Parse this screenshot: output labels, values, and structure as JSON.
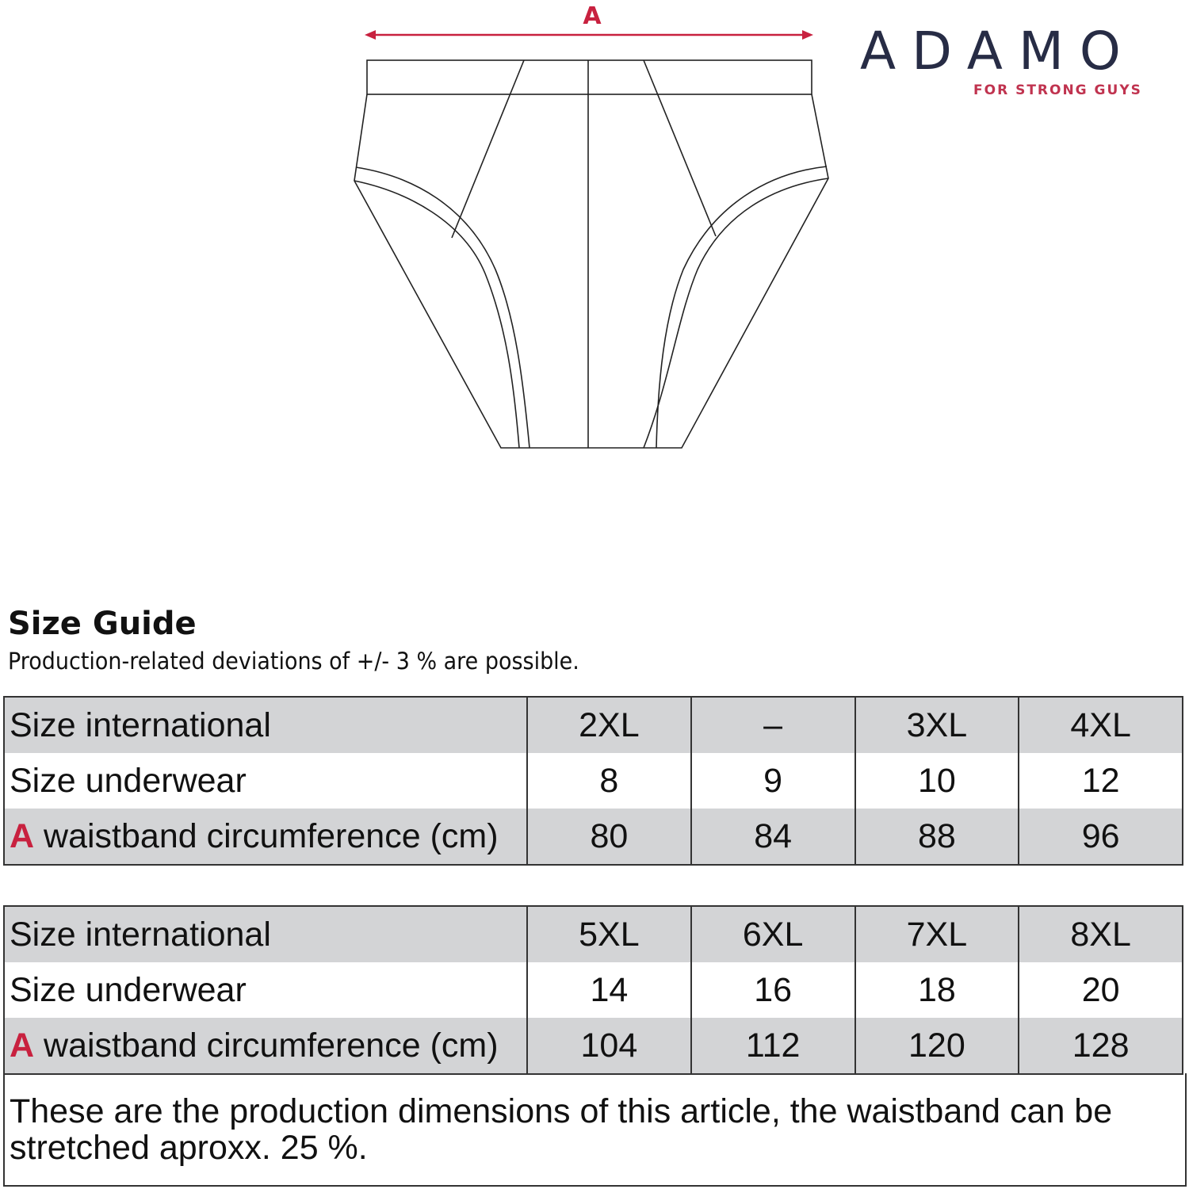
{
  "diagram": {
    "measure_label": "A",
    "accent_color": "#c8213f"
  },
  "logo": {
    "brand": "ADAMO",
    "tagline": "FOR STRONG GUYS",
    "brand_color": "#272c45",
    "tagline_color": "#c0334f"
  },
  "guide": {
    "title": "Size Guide",
    "subtitle": "Production-related deviations of +/- 3 % are possible.",
    "tables": [
      {
        "rows": [
          {
            "label": "Size international",
            "values": [
              "2XL",
              "–",
              "3XL",
              "4XL"
            ]
          },
          {
            "label": "Size underwear",
            "values": [
              "8",
              "9",
              "10",
              "12"
            ]
          },
          {
            "marker": "A",
            "label": "waistband circumference (cm)",
            "values": [
              "80",
              "84",
              "88",
              "96"
            ]
          }
        ]
      },
      {
        "rows": [
          {
            "label": "Size international",
            "values": [
              "5XL",
              "6XL",
              "7XL",
              "8XL"
            ]
          },
          {
            "label": "Size underwear",
            "values": [
              "14",
              "16",
              "18",
              "20"
            ]
          },
          {
            "marker": "A",
            "label": "waistband circumference (cm)",
            "values": [
              "104",
              "112",
              "120",
              "128"
            ]
          }
        ]
      }
    ],
    "note": "These are the production dimensions of this article, the waistband can be stretched aproxx. 25 %."
  }
}
